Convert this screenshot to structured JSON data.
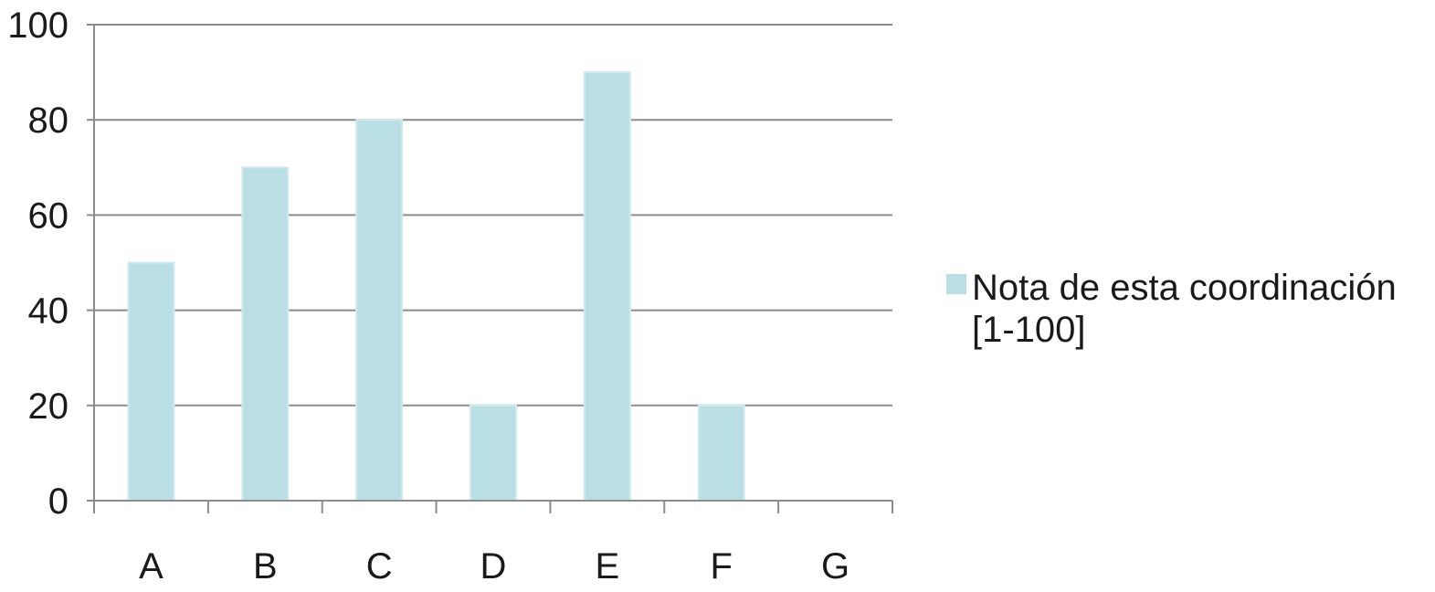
{
  "chart_data": {
    "type": "bar",
    "categories": [
      "A",
      "B",
      "C",
      "D",
      "E",
      "F",
      "G"
    ],
    "series": [
      {
        "name": "Nota de esta coordinación [1-100]",
        "values": [
          50,
          70,
          80,
          20,
          90,
          20,
          0
        ]
      }
    ],
    "title": "",
    "xlabel": "",
    "ylabel": "",
    "ylim": [
      0,
      100
    ],
    "yticks": [
      0,
      20,
      40,
      60,
      80,
      100
    ],
    "grid": true,
    "legend_position": "right",
    "colors": {
      "bar": "#b9dfe4",
      "bar_edge": "#cfe9ed",
      "grid": "#8c8c8c",
      "axis": "#8c8c8c"
    }
  }
}
